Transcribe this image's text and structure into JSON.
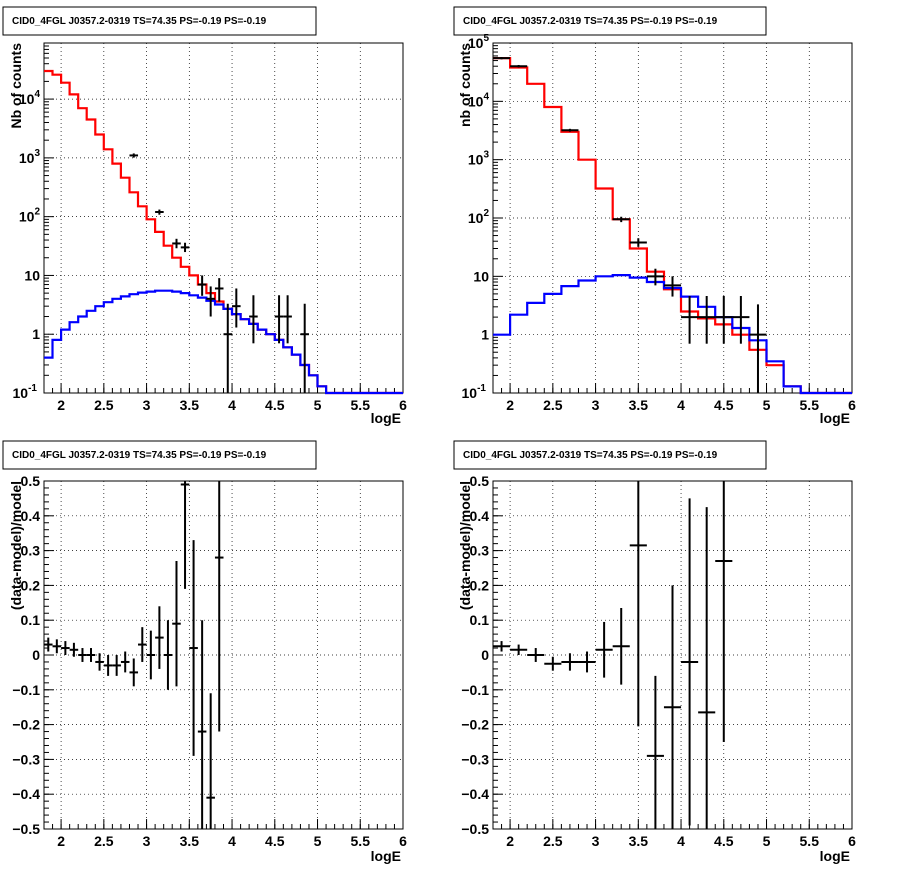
{
  "chart_data": [
    {
      "type": "line",
      "title": "CID0_4FGL J0357.2-0319 TS=74.35 PS=-0.19 PS=-0.19",
      "xlabel": "logE",
      "ylabel": "Nb of counts",
      "log_y": true,
      "xlim": [
        1.8,
        6.0
      ],
      "ylim": [
        0.1,
        90000
      ],
      "grid": true,
      "x_ticks": [
        "2",
        "2.5",
        "3",
        "3.5",
        "4",
        "4.5",
        "5",
        "5.5",
        "6"
      ],
      "y_ticks": [
        "10^-1",
        "1",
        "10",
        "10^2",
        "10^3",
        "10^4"
      ],
      "bin_edges": [
        1.8,
        1.9,
        2.0,
        2.1,
        2.2,
        2.3,
        2.4,
        2.5,
        2.6,
        2.7,
        2.8,
        2.9,
        3.0,
        3.1,
        3.2,
        3.3,
        3.4,
        3.5,
        3.6,
        3.7,
        3.8,
        3.9,
        4.0,
        4.1,
        4.2,
        4.3,
        4.4,
        4.5,
        4.6,
        4.7,
        4.8,
        4.9,
        5.0,
        5.1,
        5.2,
        5.3,
        5.4,
        5.5,
        5.6,
        5.7,
        5.8,
        5.9,
        6.0
      ],
      "series": [
        {
          "kind": "model_total",
          "color": "#ff0000",
          "values": [
            30000,
            26000,
            19000,
            12000,
            7000,
            4500,
            2500,
            1400,
            800,
            460,
            260,
            150,
            90,
            55,
            32,
            20,
            14,
            10,
            7,
            5,
            3.6,
            2.7,
            2.2,
            1.8,
            1.5,
            1.2,
            1.0,
            0.8,
            0.6,
            0.45,
            0.3,
            0.2,
            0.13,
            0.1,
            0.1,
            0.1,
            0.1,
            0.1,
            0.1,
            0.1,
            0.1,
            0.1
          ]
        },
        {
          "kind": "model_source",
          "color": "#0000ff",
          "values": [
            0.4,
            0.8,
            1.2,
            1.6,
            2.0,
            2.5,
            3.0,
            3.5,
            4.0,
            4.4,
            4.8,
            5.1,
            5.3,
            5.5,
            5.5,
            5.3,
            5.0,
            4.6,
            4.2,
            3.7,
            3.2,
            2.7,
            2.2,
            1.8,
            1.5,
            1.2,
            1.0,
            0.8,
            0.6,
            0.45,
            0.3,
            0.2,
            0.13,
            0.1,
            0.1,
            0.1,
            0.1,
            0.1,
            0.1,
            0.1,
            0.1,
            0.1
          ]
        }
      ],
      "data_points": [
        {
          "x": 2.85,
          "y": 1100,
          "elo": 90,
          "ehi": 90
        },
        {
          "x": 3.15,
          "y": 120,
          "elo": 12,
          "ehi": 12
        },
        {
          "x": 3.35,
          "y": 35,
          "elo": 6,
          "ehi": 7
        },
        {
          "x": 3.45,
          "y": 30,
          "elo": 5,
          "ehi": 6
        },
        {
          "x": 3.65,
          "y": 7,
          "elo": 2.5,
          "ehi": 3
        },
        {
          "x": 3.75,
          "y": 4,
          "elo": 2,
          "ehi": 2.5
        },
        {
          "x": 3.85,
          "y": 6,
          "elo": 2.4,
          "ehi": 3
        },
        {
          "x": 3.95,
          "y": 1,
          "elo": 0.9,
          "ehi": 2.3
        },
        {
          "x": 4.05,
          "y": 3,
          "elo": 1.7,
          "ehi": 3
        },
        {
          "x": 4.25,
          "y": 2,
          "elo": 1.3,
          "ehi": 2.6
        },
        {
          "x": 4.55,
          "y": 2,
          "elo": 1.3,
          "ehi": 2.6
        },
        {
          "x": 4.65,
          "y": 2,
          "elo": 1.3,
          "ehi": 2.6
        },
        {
          "x": 4.85,
          "y": 1,
          "elo": 0.9,
          "ehi": 2.3
        }
      ]
    },
    {
      "type": "line",
      "title": "CID0_4FGL J0357.2-0319 TS=74.35 PS=-0.19 PS=-0.19",
      "xlabel": "logE",
      "ylabel": "nb of counts",
      "log_y": true,
      "xlim": [
        1.8,
        6.0
      ],
      "ylim": [
        0.1,
        100000
      ],
      "grid": true,
      "x_ticks": [
        "2",
        "2.5",
        "3",
        "3.5",
        "4",
        "4.5",
        "5",
        "5.5",
        "6"
      ],
      "y_ticks": [
        "10^-1",
        "1",
        "10",
        "10^2",
        "10^3",
        "10^4",
        "10^5"
      ],
      "bin_edges": [
        1.8,
        2.0,
        2.2,
        2.4,
        2.6,
        2.8,
        3.0,
        3.2,
        3.4,
        3.6,
        3.8,
        4.0,
        4.2,
        4.4,
        4.6,
        4.8,
        5.0,
        5.2,
        5.4,
        5.6,
        5.8,
        6.0
      ],
      "series": [
        {
          "kind": "model_total",
          "color": "#ff0000",
          "values": [
            55000,
            38000,
            20000,
            8000,
            3000,
            1000,
            320,
            95,
            30,
            12,
            6,
            2.5,
            1.9,
            1.5,
            1.0,
            0.55,
            0.3,
            0.13,
            0.1,
            0.1,
            0.1
          ]
        },
        {
          "kind": "model_source",
          "color": "#0000ff",
          "values": [
            1.0,
            2.2,
            3.5,
            5.0,
            6.8,
            8.5,
            10,
            10.5,
            9.5,
            8,
            6.3,
            4.5,
            3,
            2,
            1.3,
            0.8,
            0.35,
            0.13,
            0.1,
            0.1,
            0.1
          ]
        }
      ],
      "data_points": [
        {
          "x": 1.9,
          "y": 55000,
          "elo": 2500,
          "ehi": 2500
        },
        {
          "x": 2.1,
          "y": 40000,
          "elo": 2000,
          "ehi": 2000
        },
        {
          "x": 2.7,
          "y": 3200,
          "elo": 180,
          "ehi": 180
        },
        {
          "x": 3.3,
          "y": 95,
          "elo": 10,
          "ehi": 10
        },
        {
          "x": 3.5,
          "y": 38,
          "elo": 6,
          "ehi": 7
        },
        {
          "x": 3.7,
          "y": 10,
          "elo": 3,
          "ehi": 3.5
        },
        {
          "x": 3.9,
          "y": 7,
          "elo": 2.5,
          "ehi": 3
        },
        {
          "x": 4.1,
          "y": 2,
          "elo": 1.3,
          "ehi": 2.6
        },
        {
          "x": 4.3,
          "y": 2,
          "elo": 1.3,
          "ehi": 2.6
        },
        {
          "x": 4.5,
          "y": 2,
          "elo": 1.3,
          "ehi": 2.6
        },
        {
          "x": 4.7,
          "y": 2,
          "elo": 1.3,
          "ehi": 2.6
        },
        {
          "x": 4.9,
          "y": 1,
          "elo": 0.9,
          "ehi": 2.3
        }
      ]
    },
    {
      "type": "scatter",
      "title": "CID0_4FGL J0357.2-0319 TS=74.35 PS=-0.19 PS=-0.19",
      "xlabel": "logE",
      "ylabel": "(data-model)/model",
      "xlim": [
        1.8,
        6.0
      ],
      "ylim": [
        -0.5,
        0.5
      ],
      "grid": true,
      "x_ticks": [
        "2",
        "2.5",
        "3",
        "3.5",
        "4",
        "4.5",
        "5",
        "5.5",
        "6"
      ],
      "y_ticks": [
        "−0.5",
        "−0.4",
        "−0.3",
        "−0.2",
        "−0.1",
        "0",
        "0.1",
        "0.2",
        "0.3",
        "0.4",
        "0.5"
      ],
      "bin_half_width": 0.05,
      "points": [
        {
          "x": 1.85,
          "y": 0.03,
          "e": 0.02
        },
        {
          "x": 1.95,
          "y": 0.025,
          "e": 0.02
        },
        {
          "x": 2.05,
          "y": 0.02,
          "e": 0.02
        },
        {
          "x": 2.15,
          "y": 0.015,
          "e": 0.02
        },
        {
          "x": 2.25,
          "y": 0.0,
          "e": 0.02
        },
        {
          "x": 2.35,
          "y": 0.0,
          "e": 0.02
        },
        {
          "x": 2.45,
          "y": -0.02,
          "e": 0.025
        },
        {
          "x": 2.55,
          "y": -0.03,
          "e": 0.03
        },
        {
          "x": 2.65,
          "y": -0.03,
          "e": 0.03
        },
        {
          "x": 2.75,
          "y": -0.02,
          "e": 0.03
        },
        {
          "x": 2.85,
          "y": -0.05,
          "e": 0.04
        },
        {
          "x": 2.95,
          "y": 0.03,
          "e": 0.05
        },
        {
          "x": 3.05,
          "y": 0.0,
          "e": 0.07
        },
        {
          "x": 3.15,
          "y": 0.05,
          "e": 0.09
        },
        {
          "x": 3.25,
          "y": 0.0,
          "e": 0.1
        },
        {
          "x": 3.35,
          "y": 0.09,
          "e": 0.18
        },
        {
          "x": 3.45,
          "y": 0.49,
          "e": 0.3
        },
        {
          "x": 3.55,
          "y": 0.02,
          "e": 0.31
        },
        {
          "x": 3.65,
          "y": -0.22,
          "e": 0.32
        },
        {
          "x": 3.75,
          "y": -0.41,
          "e": 0.3
        },
        {
          "x": 3.85,
          "y": 0.28,
          "e": 0.5
        }
      ]
    },
    {
      "type": "scatter",
      "title": "CID0_4FGL J0357.2-0319 TS=74.35 PS=-0.19 PS=-0.19",
      "xlabel": "logE",
      "ylabel": "(data-model)/model",
      "xlim": [
        1.8,
        6.0
      ],
      "ylim": [
        -0.5,
        0.5
      ],
      "grid": true,
      "x_ticks": [
        "2",
        "2.5",
        "3",
        "3.5",
        "4",
        "4.5",
        "5",
        "5.5",
        "6"
      ],
      "y_ticks": [
        "−0.5",
        "−0.4",
        "−0.3",
        "−0.2",
        "−0.1",
        "0",
        "0.1",
        "0.2",
        "0.3",
        "0.4",
        "0.5"
      ],
      "bin_half_width": 0.1,
      "points": [
        {
          "x": 1.9,
          "y": 0.025,
          "e": 0.015
        },
        {
          "x": 2.1,
          "y": 0.015,
          "e": 0.015
        },
        {
          "x": 2.3,
          "y": 0.0,
          "e": 0.02
        },
        {
          "x": 2.5,
          "y": -0.025,
          "e": 0.02
        },
        {
          "x": 2.7,
          "y": -0.02,
          "e": 0.025
        },
        {
          "x": 2.9,
          "y": -0.02,
          "e": 0.03
        },
        {
          "x": 3.1,
          "y": 0.015,
          "e": 0.08
        },
        {
          "x": 3.3,
          "y": 0.025,
          "e": 0.11
        },
        {
          "x": 3.5,
          "y": 0.315,
          "e": 0.52
        },
        {
          "x": 3.7,
          "y": -0.29,
          "e": 0.23
        },
        {
          "x": 3.9,
          "y": -0.15,
          "e": 0.35
        },
        {
          "x": 4.1,
          "y": -0.02,
          "e": 0.47
        },
        {
          "x": 4.3,
          "y": -0.165,
          "e": 0.59
        },
        {
          "x": 4.5,
          "y": 0.27,
          "e": 0.52
        }
      ]
    }
  ]
}
